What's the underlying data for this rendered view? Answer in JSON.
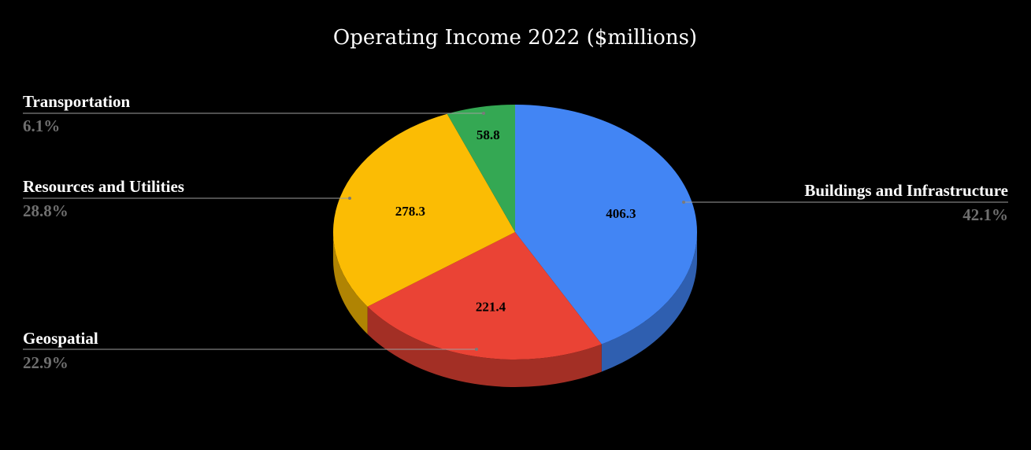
{
  "chart_data": {
    "type": "pie",
    "title": "Operating Income 2022 ($millions)",
    "three_d": true,
    "background": "#000000",
    "slices": [
      {
        "key": "buildings",
        "name": "Buildings and Infrastructure",
        "value": 406.3,
        "value_label": "406.3",
        "percent_label": "42.1%",
        "color": "#4285f4",
        "side_color": "#2f5fb0"
      },
      {
        "key": "geospatial",
        "name": "Geospatial",
        "value": 221.4,
        "value_label": "221.4",
        "percent_label": "22.9%",
        "color": "#ea4335",
        "side_color": "#a32f25"
      },
      {
        "key": "resources",
        "name": "Resources and Utilities",
        "value": 278.3,
        "value_label": "278.3",
        "percent_label": "28.8%",
        "color": "#fbbc04",
        "side_color": "#b08403"
      },
      {
        "key": "transportation",
        "name": "Transportation",
        "value": 58.8,
        "value_label": "58.8",
        "percent_label": "6.1%",
        "color": "#34a853",
        "side_color": "#24763a"
      }
    ]
  }
}
